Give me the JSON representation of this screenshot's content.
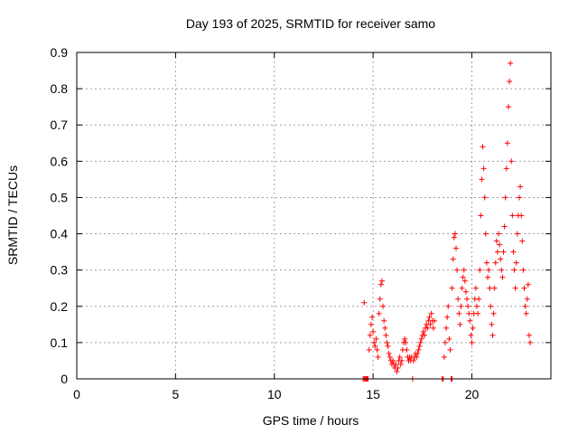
{
  "chart_data": {
    "type": "scatter",
    "title": "Day 193 of 2025, SRMTID for receiver samo",
    "xlabel": "GPS time / hours",
    "ylabel": "SRMTID / TECUs",
    "xlim": [
      0,
      24
    ],
    "ylim": [
      0,
      0.9
    ],
    "xticks": [
      0,
      5,
      10,
      15,
      20
    ],
    "yticks": [
      0,
      0.1,
      0.2,
      0.3,
      0.4,
      0.5,
      0.6,
      0.7,
      0.8,
      0.9
    ],
    "ytick_labels": [
      "0",
      "0.1",
      "0.2",
      "0.3",
      "0.4",
      "0.5",
      "0.6",
      "0.7",
      "0.8",
      "0.9"
    ],
    "grid": true,
    "marker": "+",
    "marker_color": "#ff0000",
    "series": [
      {
        "name": "SRMTID",
        "points": [
          [
            14.5,
            0.0
          ],
          [
            14.55,
            0.0
          ],
          [
            14.6,
            0.0
          ],
          [
            14.65,
            0.0
          ],
          [
            14.7,
            0.0
          ],
          [
            14.75,
            0.0
          ],
          [
            14.55,
            0.21
          ],
          [
            14.8,
            0.08
          ],
          [
            14.85,
            0.12
          ],
          [
            14.9,
            0.15
          ],
          [
            14.95,
            0.17
          ],
          [
            15.0,
            0.13
          ],
          [
            15.05,
            0.1
          ],
          [
            15.1,
            0.09
          ],
          [
            15.15,
            0.11
          ],
          [
            15.2,
            0.08
          ],
          [
            15.25,
            0.06
          ],
          [
            15.3,
            0.18
          ],
          [
            15.35,
            0.22
          ],
          [
            15.4,
            0.26
          ],
          [
            15.45,
            0.27
          ],
          [
            15.5,
            0.2
          ],
          [
            15.55,
            0.16
          ],
          [
            15.6,
            0.14
          ],
          [
            15.65,
            0.12
          ],
          [
            15.7,
            0.1
          ],
          [
            15.75,
            0.09
          ],
          [
            15.8,
            0.07
          ],
          [
            15.85,
            0.06
          ],
          [
            15.9,
            0.05
          ],
          [
            15.95,
            0.04
          ],
          [
            16.0,
            0.05
          ],
          [
            16.05,
            0.04
          ],
          [
            16.1,
            0.03
          ],
          [
            16.15,
            0.04
          ],
          [
            16.2,
            0.02
          ],
          [
            16.25,
            0.03
          ],
          [
            16.3,
            0.05
          ],
          [
            16.35,
            0.06
          ],
          [
            16.4,
            0.04
          ],
          [
            16.45,
            0.05
          ],
          [
            16.5,
            0.08
          ],
          [
            16.55,
            0.1
          ],
          [
            16.6,
            0.11
          ],
          [
            16.65,
            0.1
          ],
          [
            16.7,
            0.08
          ],
          [
            16.75,
            0.06
          ],
          [
            16.8,
            0.05
          ],
          [
            16.85,
            0.06
          ],
          [
            16.9,
            0.05
          ],
          [
            16.95,
            0.06
          ],
          [
            17.0,
            0.0
          ],
          [
            17.05,
            0.05
          ],
          [
            17.1,
            0.06
          ],
          [
            17.15,
            0.07
          ],
          [
            17.2,
            0.06
          ],
          [
            17.25,
            0.07
          ],
          [
            17.3,
            0.08
          ],
          [
            17.35,
            0.09
          ],
          [
            17.4,
            0.1
          ],
          [
            17.45,
            0.11
          ],
          [
            17.5,
            0.12
          ],
          [
            17.55,
            0.13
          ],
          [
            17.6,
            0.12
          ],
          [
            17.65,
            0.14
          ],
          [
            17.7,
            0.15
          ],
          [
            17.75,
            0.14
          ],
          [
            17.8,
            0.16
          ],
          [
            17.85,
            0.17
          ],
          [
            17.9,
            0.15
          ],
          [
            17.95,
            0.18
          ],
          [
            18.0,
            0.16
          ],
          [
            18.05,
            0.14
          ],
          [
            18.1,
            0.16
          ],
          [
            18.5,
            0.0
          ],
          [
            18.55,
            0.0
          ],
          [
            18.6,
            0.06
          ],
          [
            18.65,
            0.1
          ],
          [
            18.7,
            0.14
          ],
          [
            18.75,
            0.17
          ],
          [
            18.8,
            0.2
          ],
          [
            18.85,
            0.11
          ],
          [
            18.9,
            0.08
          ],
          [
            18.95,
            0.0
          ],
          [
            19.0,
            0.0
          ],
          [
            19.0,
            0.25
          ],
          [
            19.05,
            0.33
          ],
          [
            19.1,
            0.39
          ],
          [
            19.15,
            0.4
          ],
          [
            19.2,
            0.36
          ],
          [
            19.25,
            0.3
          ],
          [
            19.3,
            0.22
          ],
          [
            19.35,
            0.18
          ],
          [
            19.4,
            0.15
          ],
          [
            19.45,
            0.2
          ],
          [
            19.5,
            0.25
          ],
          [
            19.55,
            0.28
          ],
          [
            19.6,
            0.3
          ],
          [
            19.65,
            0.27
          ],
          [
            19.7,
            0.24
          ],
          [
            19.75,
            0.22
          ],
          [
            19.8,
            0.2
          ],
          [
            19.85,
            0.18
          ],
          [
            19.9,
            0.16
          ],
          [
            19.95,
            0.12
          ],
          [
            20.0,
            0.1
          ],
          [
            20.05,
            0.14
          ],
          [
            20.1,
            0.18
          ],
          [
            20.15,
            0.22
          ],
          [
            20.2,
            0.25
          ],
          [
            20.25,
            0.2
          ],
          [
            20.3,
            0.18
          ],
          [
            20.35,
            0.22
          ],
          [
            20.4,
            0.3
          ],
          [
            20.45,
            0.45
          ],
          [
            20.5,
            0.55
          ],
          [
            20.55,
            0.64
          ],
          [
            20.6,
            0.58
          ],
          [
            20.65,
            0.5
          ],
          [
            20.7,
            0.4
          ],
          [
            20.75,
            0.32
          ],
          [
            20.8,
            0.28
          ],
          [
            20.85,
            0.3
          ],
          [
            20.9,
            0.25
          ],
          [
            20.95,
            0.2
          ],
          [
            21.0,
            0.15
          ],
          [
            21.05,
            0.12
          ],
          [
            21.1,
            0.18
          ],
          [
            21.15,
            0.25
          ],
          [
            21.2,
            0.32
          ],
          [
            21.25,
            0.38
          ],
          [
            21.3,
            0.35
          ],
          [
            21.35,
            0.4
          ],
          [
            21.4,
            0.37
          ],
          [
            21.45,
            0.33
          ],
          [
            21.5,
            0.3
          ],
          [
            21.55,
            0.28
          ],
          [
            21.6,
            0.35
          ],
          [
            21.65,
            0.42
          ],
          [
            21.7,
            0.5
          ],
          [
            21.75,
            0.58
          ],
          [
            21.8,
            0.65
          ],
          [
            21.85,
            0.75
          ],
          [
            21.9,
            0.82
          ],
          [
            21.95,
            0.87
          ],
          [
            22.0,
            0.6
          ],
          [
            22.05,
            0.45
          ],
          [
            22.1,
            0.35
          ],
          [
            22.15,
            0.3
          ],
          [
            22.2,
            0.25
          ],
          [
            22.25,
            0.32
          ],
          [
            22.3,
            0.4
          ],
          [
            22.35,
            0.45
          ],
          [
            22.4,
            0.5
          ],
          [
            22.45,
            0.53
          ],
          [
            22.5,
            0.45
          ],
          [
            22.55,
            0.38
          ],
          [
            22.6,
            0.3
          ],
          [
            22.65,
            0.25
          ],
          [
            22.7,
            0.2
          ],
          [
            22.75,
            0.18
          ],
          [
            22.8,
            0.22
          ],
          [
            22.85,
            0.26
          ],
          [
            22.9,
            0.12
          ],
          [
            22.95,
            0.1
          ]
        ]
      }
    ]
  }
}
